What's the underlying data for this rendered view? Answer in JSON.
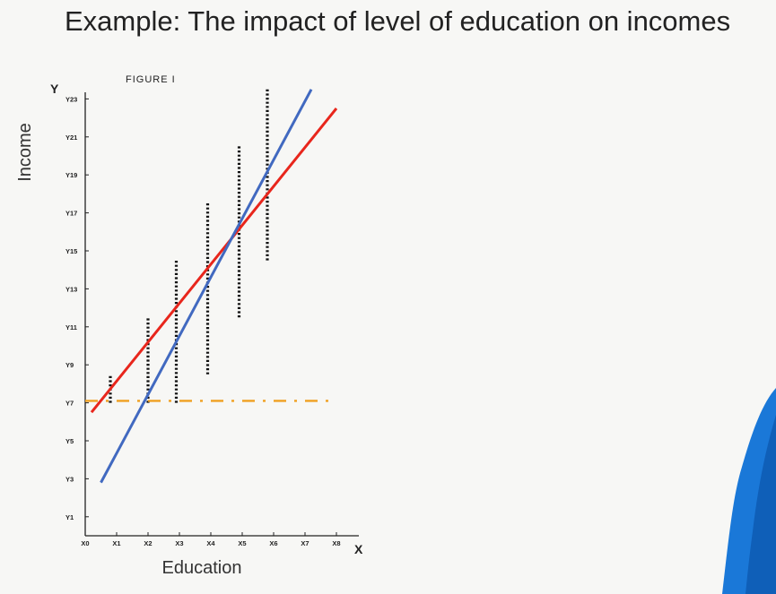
{
  "slide": {
    "title": "Example: The impact of level of education on incomes"
  },
  "chart_data": {
    "type": "scatter",
    "title": "FIGURE I",
    "xlabel": "Education",
    "ylabel": "Income",
    "x_axis_letter": "X",
    "y_axis_letter": "Y",
    "x_ticks": [
      "X0",
      "X1",
      "X2",
      "X3",
      "X4",
      "X5",
      "X6",
      "X7",
      "X8"
    ],
    "y_ticks": [
      "Y1",
      "Y3",
      "Y5",
      "Y7",
      "Y9",
      "Y11",
      "Y13",
      "Y15",
      "Y17",
      "Y19",
      "Y21",
      "Y23"
    ],
    "xlim": [
      0,
      8.5
    ],
    "ylim": [
      0,
      24
    ],
    "dot_columns": [
      {
        "x": 0.8,
        "y_min": 7,
        "y_max": 8.5
      },
      {
        "x": 2,
        "y_min": 7,
        "y_max": 11.5
      },
      {
        "x": 2.9,
        "y_min": 7,
        "y_max": 14.5
      },
      {
        "x": 3.9,
        "y_min": 8.5,
        "y_max": 17.5
      },
      {
        "x": 4.9,
        "y_min": 11.5,
        "y_max": 20.5
      },
      {
        "x": 5.8,
        "y_min": 14.5,
        "y_max": 23.5
      }
    ],
    "lines": [
      {
        "color": "#e8261c",
        "from": [
          0.2,
          6.5
        ],
        "to": [
          8,
          22.5
        ]
      },
      {
        "color": "#4169c0",
        "from": [
          0.5,
          2.8
        ],
        "to": [
          7.2,
          23.5
        ]
      },
      {
        "color": "#f0a020",
        "dashed": true,
        "from": [
          0,
          7.1
        ],
        "to": [
          8,
          7.1
        ]
      }
    ]
  },
  "colors": {
    "red_line": "#e8261c",
    "blue_line": "#4169c0",
    "orange_line": "#f0a020",
    "presenter_shirt": "#1a78d8"
  }
}
